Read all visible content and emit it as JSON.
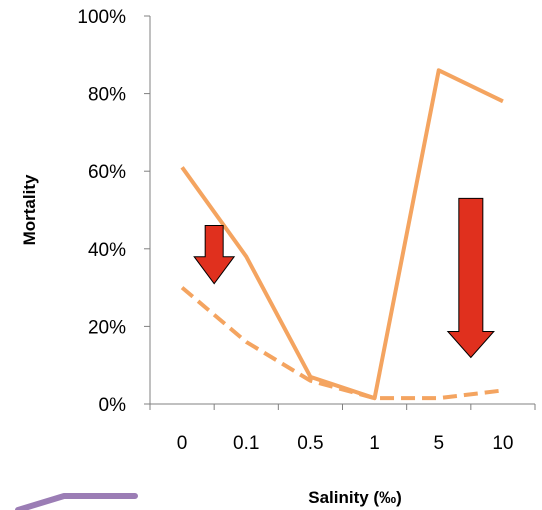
{
  "chart_data": {
    "type": "line",
    "title": "",
    "xlabel": "Salinity (‰)",
    "ylabel": "Mortality",
    "categories": [
      "0",
      "0.1",
      "0.5",
      "1",
      "5",
      "10"
    ],
    "ylim": [
      0,
      1
    ],
    "yticks": [
      "0%",
      "20%",
      "40%",
      "60%",
      "80%",
      "100%"
    ],
    "grid": false,
    "legend": "none",
    "series": [
      {
        "values": [
          0.61,
          0.38,
          0.07,
          0.015,
          0.86,
          0.78
        ],
        "style": "solid",
        "color": "#F4A460"
      },
      {
        "values": [
          0.3,
          0.16,
          0.06,
          0.015,
          0.015,
          0.035
        ],
        "style": "dashed",
        "color": "#F4A460"
      }
    ],
    "annotations": [
      {
        "kind": "down-arrow",
        "color": "#E0301E",
        "from": 0.46,
        "to": 0.31,
        "x_between": [
          0,
          0.1
        ]
      },
      {
        "kind": "down-arrow",
        "color": "#E0301E",
        "from": 0.53,
        "to": 0.12,
        "x_between": [
          5,
          10
        ]
      }
    ],
    "decoration_color": "#9B7DB5"
  }
}
